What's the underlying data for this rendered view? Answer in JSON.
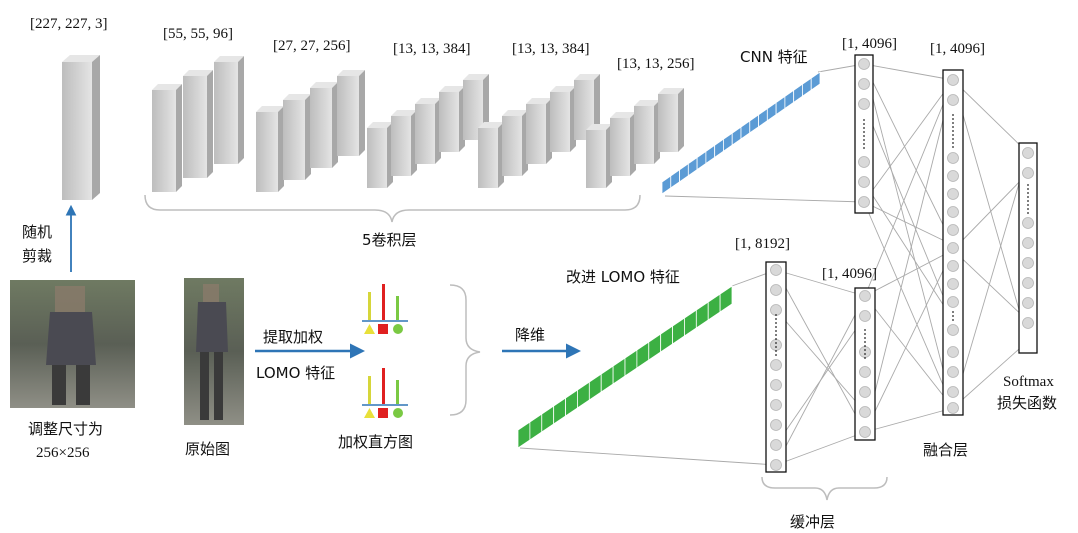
{
  "labels": {
    "input_size": "[227, 227, 3]",
    "conv1_size": "[55, 55, 96]",
    "conv2_size": "[27, 27, 256]",
    "conv3_size": "[13, 13, 384]",
    "conv4_size": "[13, 13, 384]",
    "conv5_size": "[13, 13, 256]",
    "cnn_feature": "CNN 特征",
    "fc_cnn_size": "[1, 4096]",
    "fusion_size": "[1, 4096]",
    "conv_layers": "5卷积层",
    "random_crop_line1": "随机",
    "random_crop_line2": "剪裁",
    "resize_line1": "调整尺寸为",
    "resize_line2": "256×256",
    "original": "原始图",
    "extract_weighted": "提取加权",
    "lomo_feature": "LOMO 特征",
    "weighted_hist": "加权直方图",
    "dim_reduce": "降维",
    "improved_lomo": "改进 LOMO 特征",
    "lomo_size": "[1, 8192]",
    "buffer_size": "[1, 4096]",
    "buffer_layer": "缓冲层",
    "fusion_layer": "融合层",
    "softmax_line1": "Softmax",
    "softmax_line2": "损失函数"
  },
  "colors": {
    "layer_fill": "#c8c8c8",
    "cnn_bar": "#5b9bd5",
    "lomo_bar": "#3cb043",
    "arrow": "#2e75b6",
    "node": "#d9d9d9",
    "edge": "#aaaaaa"
  }
}
